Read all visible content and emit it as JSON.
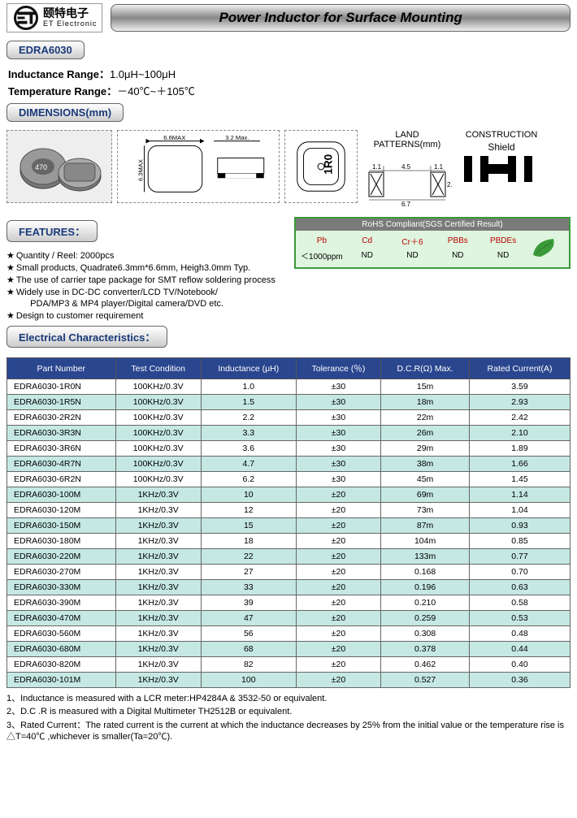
{
  "header": {
    "company_cn": "颐特电子",
    "company_en": "ET Electronic",
    "title": "Power Inductor for Surface Mounting"
  },
  "part_series": "EDRA6030",
  "specs": {
    "inductance_range_label": "Inductance Range：",
    "inductance_range_value": "1.0μH~100μH",
    "temp_range_label": "Temperature Range：",
    "temp_range_value": "－40℃~＋105℃"
  },
  "sections": {
    "dimensions": "DIMENSIONS(mm)",
    "features": "FEATURES：",
    "electrical": "Electrical Characteristics："
  },
  "dimensions": {
    "L_max": "6.6MAX",
    "W_max": "6.3MAX",
    "H_max": "3.2 Max.",
    "top_mark": "1R0",
    "land_title": "LAND PATTERNS(mm)",
    "land_a": "1.1",
    "land_b": "4.5",
    "land_c": "1.1",
    "land_w": "6.7",
    "land_h": "2.3",
    "cons_title": "CONSTRUCTION",
    "cons_sub": "Shield",
    "photo_mark": "470"
  },
  "features": [
    "Quantity / Reel: 2000pcs",
    "Small products, Quadrate6.3mm*6.6mm, Heigh3.0mm Typ.",
    "The use of carrier tape package for SMT reflow soldering process",
    "Widely use in DC-DC converter/LCD TV/Notebook/",
    "  PDA/MP3 & MP4 player/Digital camera/DVD etc.",
    "Design to customer requirement"
  ],
  "rohs": {
    "title": "RoHS Compliant(SGS Certified Result)",
    "cols": [
      "Pb",
      "Cd",
      "Cr＋6",
      "PBBs",
      "PBDEs"
    ],
    "vals": [
      "＜1000ppm",
      "ND",
      "ND",
      "ND",
      "ND"
    ]
  },
  "table": {
    "headers": [
      "Part Number",
      "Test Condition",
      "Inductance   (μH)",
      "Tolerance   (％)",
      "D.C.R(Ω) Max.",
      "Rated Current(A)"
    ],
    "rows": [
      [
        "EDRA6030-1R0N",
        "100KHz/0.3V",
        "1.0",
        "±30",
        "15m",
        "3.59"
      ],
      [
        "EDRA6030-1R5N",
        "100KHz/0.3V",
        "1.5",
        "±30",
        "18m",
        "2.93"
      ],
      [
        "EDRA6030-2R2N",
        "100KHz/0.3V",
        "2.2",
        "±30",
        "22m",
        "2.42"
      ],
      [
        "EDRA6030-3R3N",
        "100KHz/0.3V",
        "3.3",
        "±30",
        "26m",
        "2.10"
      ],
      [
        "EDRA6030-3R6N",
        "100KHz/0.3V",
        "3.6",
        "±30",
        "29m",
        "1.89"
      ],
      [
        "EDRA6030-4R7N",
        "100KHz/0.3V",
        "4.7",
        "±30",
        "38m",
        "1.66"
      ],
      [
        "EDRA6030-6R2N",
        "100KHz/0.3V",
        "6.2",
        "±30",
        "45m",
        "1.45"
      ],
      [
        "EDRA6030-100M",
        "1KHz/0.3V",
        "10",
        "±20",
        "69m",
        "1.14"
      ],
      [
        "EDRA6030-120M",
        "1KHz/0.3V",
        "12",
        "±20",
        "73m",
        "1.04"
      ],
      [
        "EDRA6030-150M",
        "1KHz/0.3V",
        "15",
        "±20",
        "87m",
        "0.93"
      ],
      [
        "EDRA6030-180M",
        "1KHz/0.3V",
        "18",
        "±20",
        "104m",
        "0.85"
      ],
      [
        "EDRA6030-220M",
        "1KHz/0.3V",
        "22",
        "±20",
        "133m",
        "0.77"
      ],
      [
        "EDRA6030-270M",
        "1KHz/0.3V",
        "27",
        "±20",
        "0.168",
        "0.70"
      ],
      [
        "EDRA6030-330M",
        "1KHz/0.3V",
        "33",
        "±20",
        "0.196",
        "0.63"
      ],
      [
        "EDRA6030-390M",
        "1KHz/0.3V",
        "39",
        "±20",
        "0.210",
        "0.58"
      ],
      [
        "EDRA6030-470M",
        "1KHz/0.3V",
        "47",
        "±20",
        "0.259",
        "0.53"
      ],
      [
        "EDRA6030-560M",
        "1KHz/0.3V",
        "56",
        "±20",
        "0.308",
        "0.48"
      ],
      [
        "EDRA6030-680M",
        "1KHz/0.3V",
        "68",
        "±20",
        "0.378",
        "0.44"
      ],
      [
        "EDRA6030-820M",
        "1KHz/0.3V",
        "82",
        "±20",
        "0.462",
        "0.40"
      ],
      [
        "EDRA6030-101M",
        "1KHz/0.3V",
        "100",
        "±20",
        "0.527",
        "0.36"
      ]
    ]
  },
  "notes": [
    "1、Inductance is measured with a LCR meter:HP4284A & 3532-50 or equivalent.",
    "2、D.C .R is measured with a Digital Multimeter TH2512B or equivalent.",
    "3、Rated Current：The rated current is the current at which the inductance decreases by 25% from the initial value or the temperature rise is △T=40℃ ,whichever is smaller(Ta=20℃)."
  ]
}
